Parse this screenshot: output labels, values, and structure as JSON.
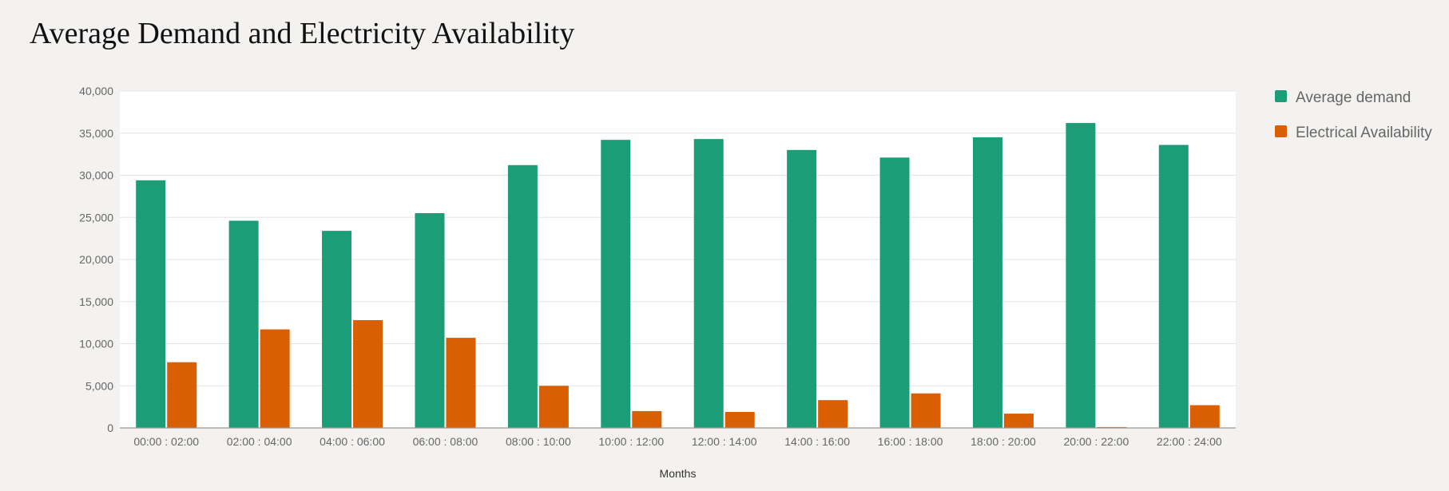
{
  "colors": {
    "demand": "#1b9e77",
    "availability": "#d95f02",
    "plot_bg": "#ffffff",
    "grid": "#e4e4e4",
    "axis": "#999999"
  },
  "chart_data": {
    "type": "bar",
    "title": "Average Demand and Electricity Availability",
    "xlabel": "Months",
    "ylabel": "",
    "ylim": [
      0,
      40000
    ],
    "yticks": [
      0,
      5000,
      10000,
      15000,
      20000,
      25000,
      30000,
      35000,
      40000
    ],
    "ytick_labels": [
      "0",
      "5,000",
      "10,000",
      "15,000",
      "20,000",
      "25,000",
      "30,000",
      "35,000",
      "40,000"
    ],
    "grid": true,
    "legend_position": "right",
    "categories": [
      "00:00 : 02:00",
      "02:00 : 04:00",
      "04:00 : 06:00",
      "06:00 : 08:00",
      "08:00 : 10:00",
      "10:00 : 12:00",
      "12:00 : 14:00",
      "14:00 : 16:00",
      "16:00 : 18:00",
      "18:00 : 20:00",
      "20:00 : 22:00",
      "22:00 : 24:00"
    ],
    "series": [
      {
        "name": "Average demand",
        "color": "#1b9e77",
        "values": [
          29400,
          24600,
          23400,
          25500,
          31200,
          34200,
          34300,
          33000,
          32100,
          34500,
          36200,
          33600
        ]
      },
      {
        "name": "Electrical Availability",
        "color": "#d95f02",
        "values": [
          7800,
          11700,
          12800,
          10700,
          5000,
          2000,
          1900,
          3300,
          4100,
          1700,
          100,
          2700
        ]
      }
    ]
  }
}
